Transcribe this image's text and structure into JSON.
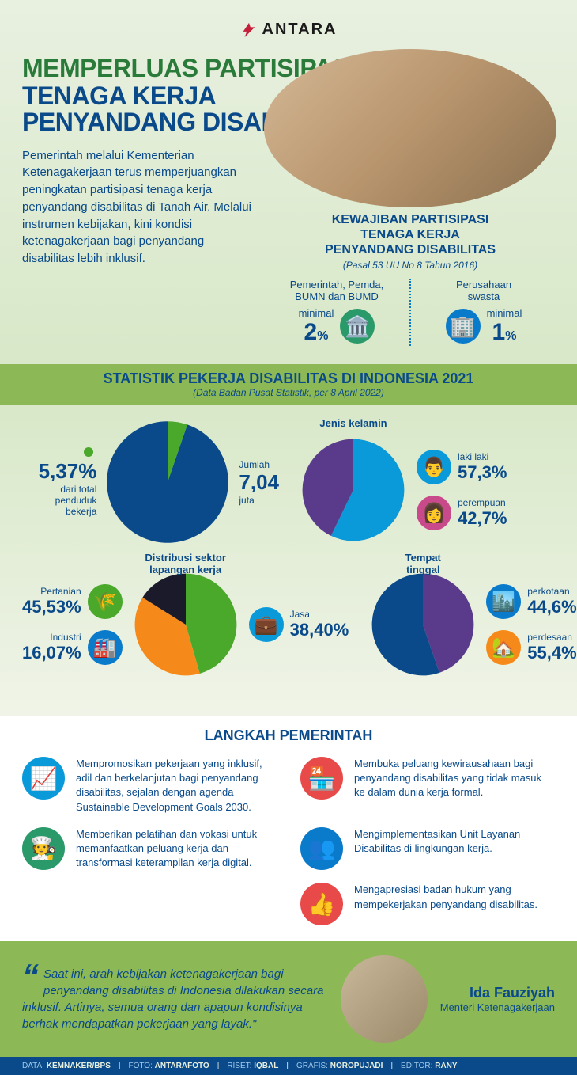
{
  "brand": "ANTARA",
  "title": {
    "line1": "MEMPERLUAS PARTISIPASI",
    "line2": "TENAGA KERJA",
    "line3": "PENYANDANG DISABILITAS"
  },
  "intro": "Pemerintah melalui Kementerian Ketenagakerjaan terus memperjuangkan peningkatan partisipasi tenaga kerja penyandang disabilitas di Tanah Air. Melalui instrumen kebijakan, kini kondisi ketenagakerjaan bagi penyandang disabilitas lebih inklusif.",
  "obligation": {
    "title_l1": "KEWAJIBAN PARTISIPASI",
    "title_l2": "TENAGA KERJA",
    "title_l3": "PENYANDANG DISABILITAS",
    "subtitle": "(Pasal 53 UU No 8 Tahun 2016)",
    "left": {
      "label_l1": "Pemerintah, Pemda,",
      "label_l2": "BUMN dan BUMD",
      "min": "minimal",
      "pct": "2",
      "icon_bg": "#2a9a6a"
    },
    "right": {
      "label_l1": "Perusahaan",
      "label_l2": "swasta",
      "min": "minimal",
      "pct": "1",
      "icon_bg": "#0a7aca"
    }
  },
  "stats_header": {
    "title": "STATISTIK PEKERJA DISABILITAS DI INDONESIA 2021",
    "subtitle": "(Data Badan Pusat Statistik, per 8 April 2022)"
  },
  "pie_total": {
    "pct": "5,37",
    "pct_label": "dari total penduduk bekerja",
    "jumlah_label": "Jumlah",
    "jumlah_val": "7,04",
    "jumlah_unit": "juta",
    "slice_deg": 19,
    "color_main": "#0a4a8a",
    "color_slice": "#4aa82a"
  },
  "pie_gender": {
    "title": "Jenis kelamin",
    "male": {
      "label": "laki laki",
      "pct": "57,3",
      "deg": 206,
      "color": "#0a9ada",
      "icon_bg": "#0a9ada"
    },
    "female": {
      "label": "perempuan",
      "pct": "42,7",
      "color": "#5a3a8a",
      "icon_bg": "#c84a8a"
    }
  },
  "pie_sector": {
    "title_l1": "Distribusi sektor",
    "title_l2": "lapangan kerja",
    "pertanian": {
      "label": "Pertanian",
      "pct": "45,53",
      "deg": 164,
      "color": "#4aa82a",
      "icon_bg": "#4aa82a"
    },
    "jasa": {
      "label": "Jasa",
      "pct": "38,40",
      "deg": 138,
      "color": "#f58a1a",
      "icon_bg": "#0a9ada"
    },
    "industri": {
      "label": "Industri",
      "pct": "16,07",
      "color": "#1a1a2a",
      "icon_bg": "#0a7aca"
    }
  },
  "pie_place": {
    "title_l1": "Tempat",
    "title_l2": "tinggal",
    "urban": {
      "label": "perkotaan",
      "pct": "44,6",
      "deg": 161,
      "color": "#5a3a8a",
      "icon_bg": "#0a7aca"
    },
    "rural": {
      "label": "perdesaan",
      "pct": "55,4",
      "color": "#0a4a8a",
      "icon_bg": "#f58a1a"
    }
  },
  "steps": {
    "title": "LANGKAH PEMERINTAH",
    "items": [
      {
        "text": "Mempromosikan pekerjaan yang inklusif, adil dan berkelanjutan bagi penyandang disabilitas, sejalan dengan agenda Sustainable Development Goals 2030.",
        "icon": "📈",
        "bg": "#0a9ada"
      },
      {
        "text": "Membuka peluang kewirausahaan bagi penyandang disabilitas yang tidak masuk ke dalam dunia kerja formal.",
        "icon": "🏪",
        "bg": "#e84a4a"
      },
      {
        "text": "Memberikan pelatihan dan vokasi untuk memanfaatkan peluang kerja dan transformasi keterampilan kerja digital.",
        "icon": "🧑‍🍳",
        "bg": "#2a9a6a"
      },
      {
        "text": "Mengimplementasikan Unit Layanan Disabilitas di lingkungan kerja.",
        "icon": "👥",
        "bg": "#0a7aca"
      },
      {
        "text": "",
        "icon": "",
        "bg": ""
      },
      {
        "text": "Mengapresiasi badan hukum yang mempekerjakan penyandang disabilitas.",
        "icon": "👍",
        "bg": "#e84a4a"
      }
    ]
  },
  "quote": {
    "text": "Saat ini, arah kebijakan ketenagakerjaan bagi penyandang disabilitas di Indonesia dilakukan secara inklusif. Artinya, semua orang dan apapun kondisinya berhak mendapatkan pekerjaan yang layak.\"",
    "name": "Ida Fauziyah",
    "role": "Menteri Ketenagakerjaan"
  },
  "credits": {
    "data_k": "DATA:",
    "data_v": "KEMNAKER/BPS",
    "foto_k": "FOTO:",
    "foto_v": "ANTARAFOTO",
    "riset_k": "RISET:",
    "riset_v": "IQBAL",
    "grafis_k": "GRAFIS:",
    "grafis_v": "NOROPUJADI",
    "editor_k": "EDITOR:",
    "editor_v": "RANY"
  },
  "colors": {
    "navy": "#0a4a8a",
    "green": "#8cb856"
  }
}
